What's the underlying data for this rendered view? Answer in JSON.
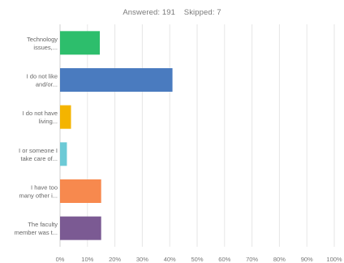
{
  "header": {
    "answered_label": "Answered: 191",
    "skipped_label": "Skipped: 7"
  },
  "chart_data": {
    "type": "bar",
    "orientation": "horizontal",
    "categories": [
      [
        "Technology",
        "issues,..."
      ],
      [
        "I do not like",
        "and/or..."
      ],
      [
        "I do not have",
        "living..."
      ],
      [
        "I or someone I",
        "take care of..."
      ],
      [
        "I have too",
        "many other i..."
      ],
      [
        "The faculty",
        "member was t..."
      ]
    ],
    "values": [
      14.5,
      41,
      4,
      2.5,
      15,
      15
    ],
    "colors": [
      "#2dbe6c",
      "#4a7bbf",
      "#f4b400",
      "#6ccad6",
      "#f7894e",
      "#7b5a93"
    ],
    "xlim": [
      0,
      100
    ],
    "x_ticks": [
      "0%",
      "10%",
      "20%",
      "30%",
      "40%",
      "50%",
      "60%",
      "70%",
      "80%",
      "90%",
      "100%"
    ],
    "grid": true,
    "gridline_color": "#e6e6e6"
  }
}
